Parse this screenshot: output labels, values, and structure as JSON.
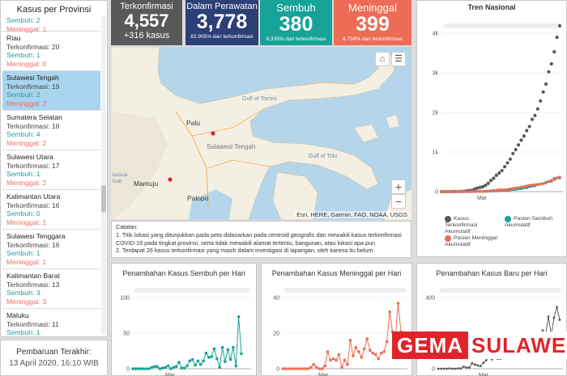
{
  "sidebar": {
    "title": "Kasus per Provinsi",
    "top_partial": {
      "s": "Sembuh: 2",
      "m": "Meninggal: 1"
    },
    "provinces": [
      {
        "name": "Riau",
        "k": "Terkonfirmasi: 20",
        "s": "Sembuh: 1",
        "m": "Meninggal: 0"
      },
      {
        "name": "Sulawesi Tengah",
        "k": "Terkonfirmasi: 19",
        "s": "Sembuh: 2",
        "m": "Meninggal: 2"
      },
      {
        "name": "Sumatera Selatan",
        "k": "Terkonfirmasi: 18",
        "s": "Sembuh: 4",
        "m": "Meninggal: 2"
      },
      {
        "name": "Sulawesi Utara",
        "k": "Terkonfirmasi: 17",
        "s": "Sembuh: 1",
        "m": "Meninggal: 2"
      },
      {
        "name": "Kalimantan Utara",
        "k": "Terkonfirmasi: 16",
        "s": "Sembuh: 0",
        "m": "Meninggal: 1"
      },
      {
        "name": "Sulawesi Tenggara",
        "k": "Terkonfirmasi: 16",
        "s": "Sembuh: 1",
        "m": "Meninggal: 1"
      },
      {
        "name": "Kalimantan Barat",
        "k": "Terkonfirmasi: 13",
        "s": "Sembuh: 3",
        "m": "Meninggal: 3"
      },
      {
        "name": "Maluku",
        "k": "Terkonfirmasi: 11",
        "s": "Sembuh: 1",
        "m": ""
      }
    ]
  },
  "update": {
    "label": "Pembaruan Terakhir:",
    "value": "13 April 2020, 16:10 WIB"
  },
  "stats": {
    "confirmed": {
      "label": "Terkonfirmasi",
      "value": "4,557",
      "delta": "+316 kasus"
    },
    "treated": {
      "label": "Dalam Perawatan",
      "value": "3,778",
      "sub": "82.905% dari terkonfirmasi"
    },
    "recovered": {
      "label": "Sembuh",
      "value": "380",
      "sub": "8.339% dari terkonfirmasi"
    },
    "deaths": {
      "label": "Meninggal",
      "value": "399",
      "sub": "8.756% dari terkonfirmasi"
    }
  },
  "map": {
    "labels": {
      "palu": "Palu",
      "sulteng": "Sulawesi Tengah",
      "tomini": "Gulf of Tomini",
      "tolo": "Gulf of Tolo",
      "mamuju": "Mamuju",
      "palopo": "Palopo",
      "kassar": "kassar",
      "trait": "trait"
    },
    "attribution": "Esri, HERE, Garmin, FAO, NOAA, USGS",
    "zoom_in": "+",
    "zoom_out": "−"
  },
  "notes": {
    "title": "Catatan:",
    "l1": "1. Titik lokasi yang ditunjukkan pada peta didasarkan pada centroid geografis dan mewakili kasus terkonfirmasi COVID-19 pada tingkat provinsi, serta tidak mewakili alamat tertentu, bangunan, atau lokasi apa pun.",
    "l2": "2. Terdapat 26 kasus terkonfirmasi yang masih dalam investigasi di lapangan, oleh karena itu belum"
  },
  "charts": {
    "trend": {
      "title": "Tren Nasional",
      "yticks": [
        "4k",
        "3k",
        "2k",
        "1k",
        "0"
      ],
      "xtick": "Mar",
      "legend": [
        "Kasus Terkonfirmasi Akumulatif",
        "Pasien Sembuh Akumulatif",
        "Pasien Meninggal Akumulatif"
      ]
    },
    "recovered_daily": {
      "title": "Penambahan Kasus Sembuh per Hari",
      "yticks": [
        "100",
        "50",
        "0"
      ],
      "xtick": "Mar"
    },
    "deaths_daily": {
      "title": "Penambahan Kasus Meninggal per Hari",
      "yticks": [
        "40",
        "20",
        "0"
      ],
      "xtick": "Mar"
    },
    "new_daily": {
      "title": "Penambahan Kasus Baru per Hari",
      "yticks": [
        "400",
        "200",
        "0"
      ],
      "xtick": "Mar"
    }
  },
  "logo": {
    "part1": "GEMA",
    "part2": "SULAWESI"
  },
  "colors": {
    "confirmed": "#595959",
    "treated": "#2c3f77",
    "recovered": "#17a398",
    "deaths": "#ec6c55"
  },
  "chart_data": [
    {
      "type": "scatter",
      "title": "Tren Nasional",
      "series": [
        {
          "name": "Kasus Terkonfirmasi Akumulatif",
          "values": [
            0,
            0,
            0,
            0,
            2,
            2,
            2,
            4,
            6,
            19,
            27,
            34,
            69,
            96,
            117,
            134,
            172,
            227,
            309,
            369,
            450,
            514,
            579,
            686,
            790,
            893,
            1046,
            1155,
            1285,
            1414,
            1528,
            1677,
            1790,
            1986,
            2092,
            2273,
            2491,
            2738,
            2956,
            3293,
            3512,
            3842,
            4241,
            4557
          ]
        },
        {
          "name": "Pasien Sembuh Akumulatif",
          "values": [
            0,
            0,
            0,
            0,
            0,
            0,
            0,
            0,
            0,
            0,
            0,
            2,
            5,
            8,
            8,
            9,
            11,
            15,
            15,
            17,
            20,
            29,
            30,
            31,
            35,
            46,
            59,
            64,
            75,
            81,
            103,
            112,
            134,
            150,
            164,
            192,
            209,
            222,
            252,
            282,
            286,
            359,
            380,
            380
          ]
        },
        {
          "name": "Pasien Meninggal Akumulatif",
          "values": [
            0,
            0,
            0,
            0,
            0,
            0,
            0,
            0,
            0,
            0,
            0,
            1,
            4,
            5,
            5,
            5,
            7,
            19,
            25,
            32,
            38,
            48,
            49,
            55,
            58,
            78,
            87,
            102,
            114,
            122,
            136,
            157,
            170,
            181,
            191,
            198,
            209,
            221,
            240,
            280,
            306,
            327,
            373,
            399
          ]
        }
      ]
    },
    {
      "type": "line",
      "title": "Penambahan Kasus Sembuh per Hari",
      "values": [
        0,
        0,
        0,
        0,
        0,
        0,
        0,
        2,
        3,
        3,
        0,
        1,
        2,
        4,
        0,
        2,
        3,
        9,
        1,
        1,
        4,
        11,
        13,
        5,
        11,
        6,
        11,
        22,
        16,
        17,
        28,
        14,
        2,
        30,
        10,
        27,
        13,
        30,
        4,
        73,
        21
      ]
    },
    {
      "type": "line",
      "title": "Penambahan Kasus Meninggal per Hari",
      "values": [
        0,
        0,
        0,
        0,
        0,
        0,
        0,
        0,
        0,
        0,
        1,
        3,
        1,
        0,
        0,
        2,
        12,
        6,
        7,
        6,
        10,
        1,
        6,
        3,
        20,
        9,
        15,
        12,
        8,
        14,
        21,
        13,
        11,
        10,
        7,
        11,
        12,
        19,
        40,
        26,
        21,
        46,
        26
      ]
    }
  ]
}
